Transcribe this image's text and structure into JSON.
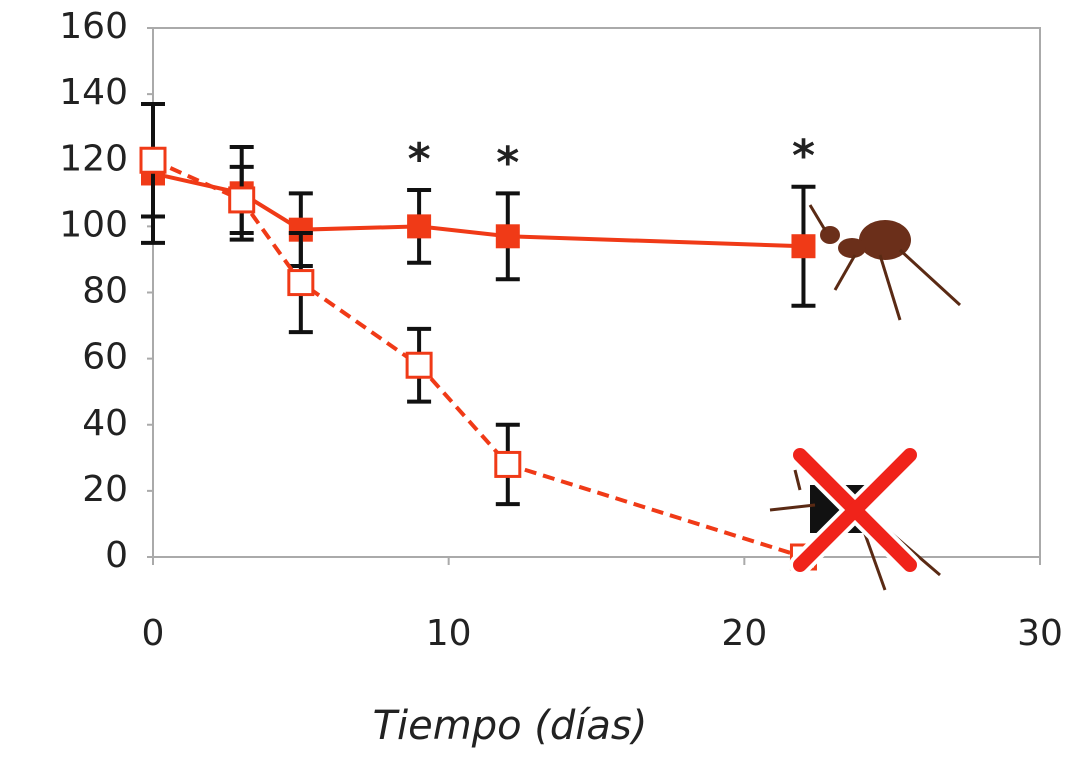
{
  "chart_data": {
    "type": "line",
    "x_label": "Tiempo (días)",
    "xlim": [
      0,
      30
    ],
    "xticks": [
      0,
      10,
      20,
      30
    ],
    "ylim": [
      0,
      160
    ],
    "yticks": [
      0,
      20,
      40,
      60,
      80,
      100,
      120,
      140,
      160
    ],
    "grid": false,
    "series": [
      {
        "color": "#f03a17",
        "marker": "filled",
        "dashed": false,
        "x": [
          0,
          3,
          5,
          9,
          12,
          22
        ],
        "values": [
          116,
          110,
          99,
          100,
          97,
          94
        ],
        "errors": [
          21,
          14,
          11,
          11,
          13,
          18
        ]
      },
      {
        "color": "#f03a17",
        "marker": "open",
        "dashed": true,
        "x": [
          0,
          3,
          5,
          9,
          12,
          22
        ],
        "values": [
          120,
          108,
          83,
          58,
          28,
          0
        ],
        "errors": [
          17,
          10,
          15,
          11,
          12,
          0
        ]
      }
    ],
    "annotations": [
      {
        "text": "*",
        "x": 9
      },
      {
        "text": "*",
        "x": 12
      },
      {
        "text": "*",
        "x": 22
      }
    ]
  }
}
